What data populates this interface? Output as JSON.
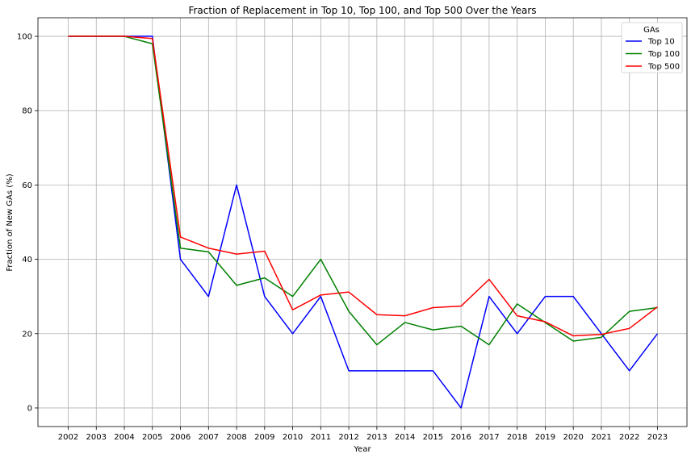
{
  "chart_data": {
    "type": "line",
    "title": "Fraction of Replacement in Top 10, Top 100, and Top 500 Over the Years",
    "xlabel": "Year",
    "ylabel": "Fraction of New GAs (%)",
    "x": [
      "2002",
      "2003",
      "2004",
      "2005",
      "2006",
      "2007",
      "2008",
      "2009",
      "2010",
      "2011",
      "2012",
      "2013",
      "2014",
      "2015",
      "2016",
      "2017",
      "2018",
      "2019",
      "2020",
      "2021",
      "2022",
      "2023"
    ],
    "ylim": [
      -5,
      105
    ],
    "yticks": [
      "0",
      "20",
      "40",
      "60",
      "80",
      "100"
    ],
    "grid": true,
    "legend": {
      "title": "GAs",
      "position": "top-right"
    },
    "series": [
      {
        "name": "Top 10",
        "color": "#0000ff",
        "values": [
          100,
          100,
          100,
          100,
          40,
          30,
          60,
          30,
          20,
          30,
          10,
          10,
          10,
          10,
          0,
          30,
          20,
          30,
          30,
          20,
          10,
          20
        ]
      },
      {
        "name": "Top 100",
        "color": "#008000",
        "values": [
          100,
          100,
          100,
          98,
          43,
          42,
          33,
          35,
          30,
          40,
          26,
          17,
          23,
          21,
          22,
          17,
          28,
          23,
          18,
          19,
          26,
          27
        ]
      },
      {
        "name": "Top 500",
        "color": "#ff0000",
        "values": [
          100,
          100,
          100,
          99.4,
          46,
          43,
          41.4,
          42.2,
          26.4,
          30.4,
          31.2,
          25.1,
          24.8,
          27,
          27.4,
          34.6,
          24.8,
          23.2,
          19.4,
          19.8,
          21.4,
          27.2
        ]
      }
    ]
  }
}
